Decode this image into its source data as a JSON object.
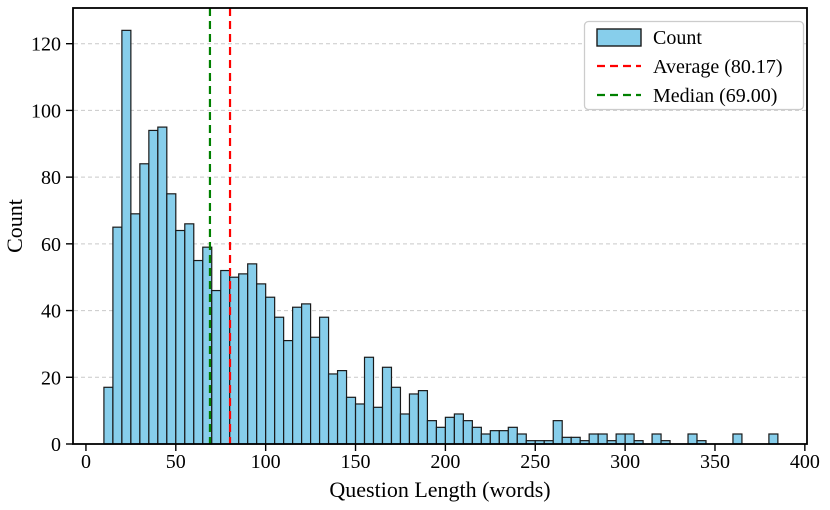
{
  "chart_data": {
    "type": "bar",
    "subtype": "histogram",
    "title": "",
    "xlabel": "Question Length (words)",
    "ylabel": "Count",
    "bin_start": 10,
    "bin_width": 5,
    "counts": [
      17,
      65,
      124,
      69,
      84,
      94,
      95,
      75,
      64,
      66,
      55,
      59,
      46,
      52,
      50,
      51,
      54,
      48,
      44,
      38,
      31,
      41,
      42,
      32,
      38,
      21,
      22,
      14,
      12,
      26,
      11,
      23,
      17,
      9,
      15,
      16,
      7,
      5,
      8,
      9,
      7,
      5,
      3,
      4,
      4,
      5,
      3,
      1,
      1,
      1,
      7,
      2,
      2,
      1,
      3,
      3,
      1,
      3,
      3,
      1,
      0,
      3,
      1,
      0,
      0,
      3,
      1,
      0,
      0,
      0,
      3,
      0,
      0,
      0,
      3
    ],
    "average_value": 80.17,
    "median_value": 69.0,
    "x_ticks": [
      0,
      50,
      100,
      150,
      200,
      250,
      300,
      350,
      400
    ],
    "y_ticks": [
      0,
      20,
      40,
      60,
      80,
      100,
      120
    ],
    "xlim": [
      -7.2,
      401.2
    ],
    "ylim": [
      0,
      130.7
    ],
    "grid": "horizontal-dashed",
    "legend_position": "upper-right",
    "legend_labels": {
      "count": "Count",
      "average": "Average (80.17)",
      "median": "Median (69.00)"
    }
  },
  "colors": {
    "bar_fill": "#87ceeb",
    "bar_edge": "#1a1a1a",
    "average_line": "#ff0000",
    "median_line": "#008000",
    "grid_line": "#c9c9c9",
    "legend_border": "#cccccc",
    "axis_line": "#000000"
  }
}
